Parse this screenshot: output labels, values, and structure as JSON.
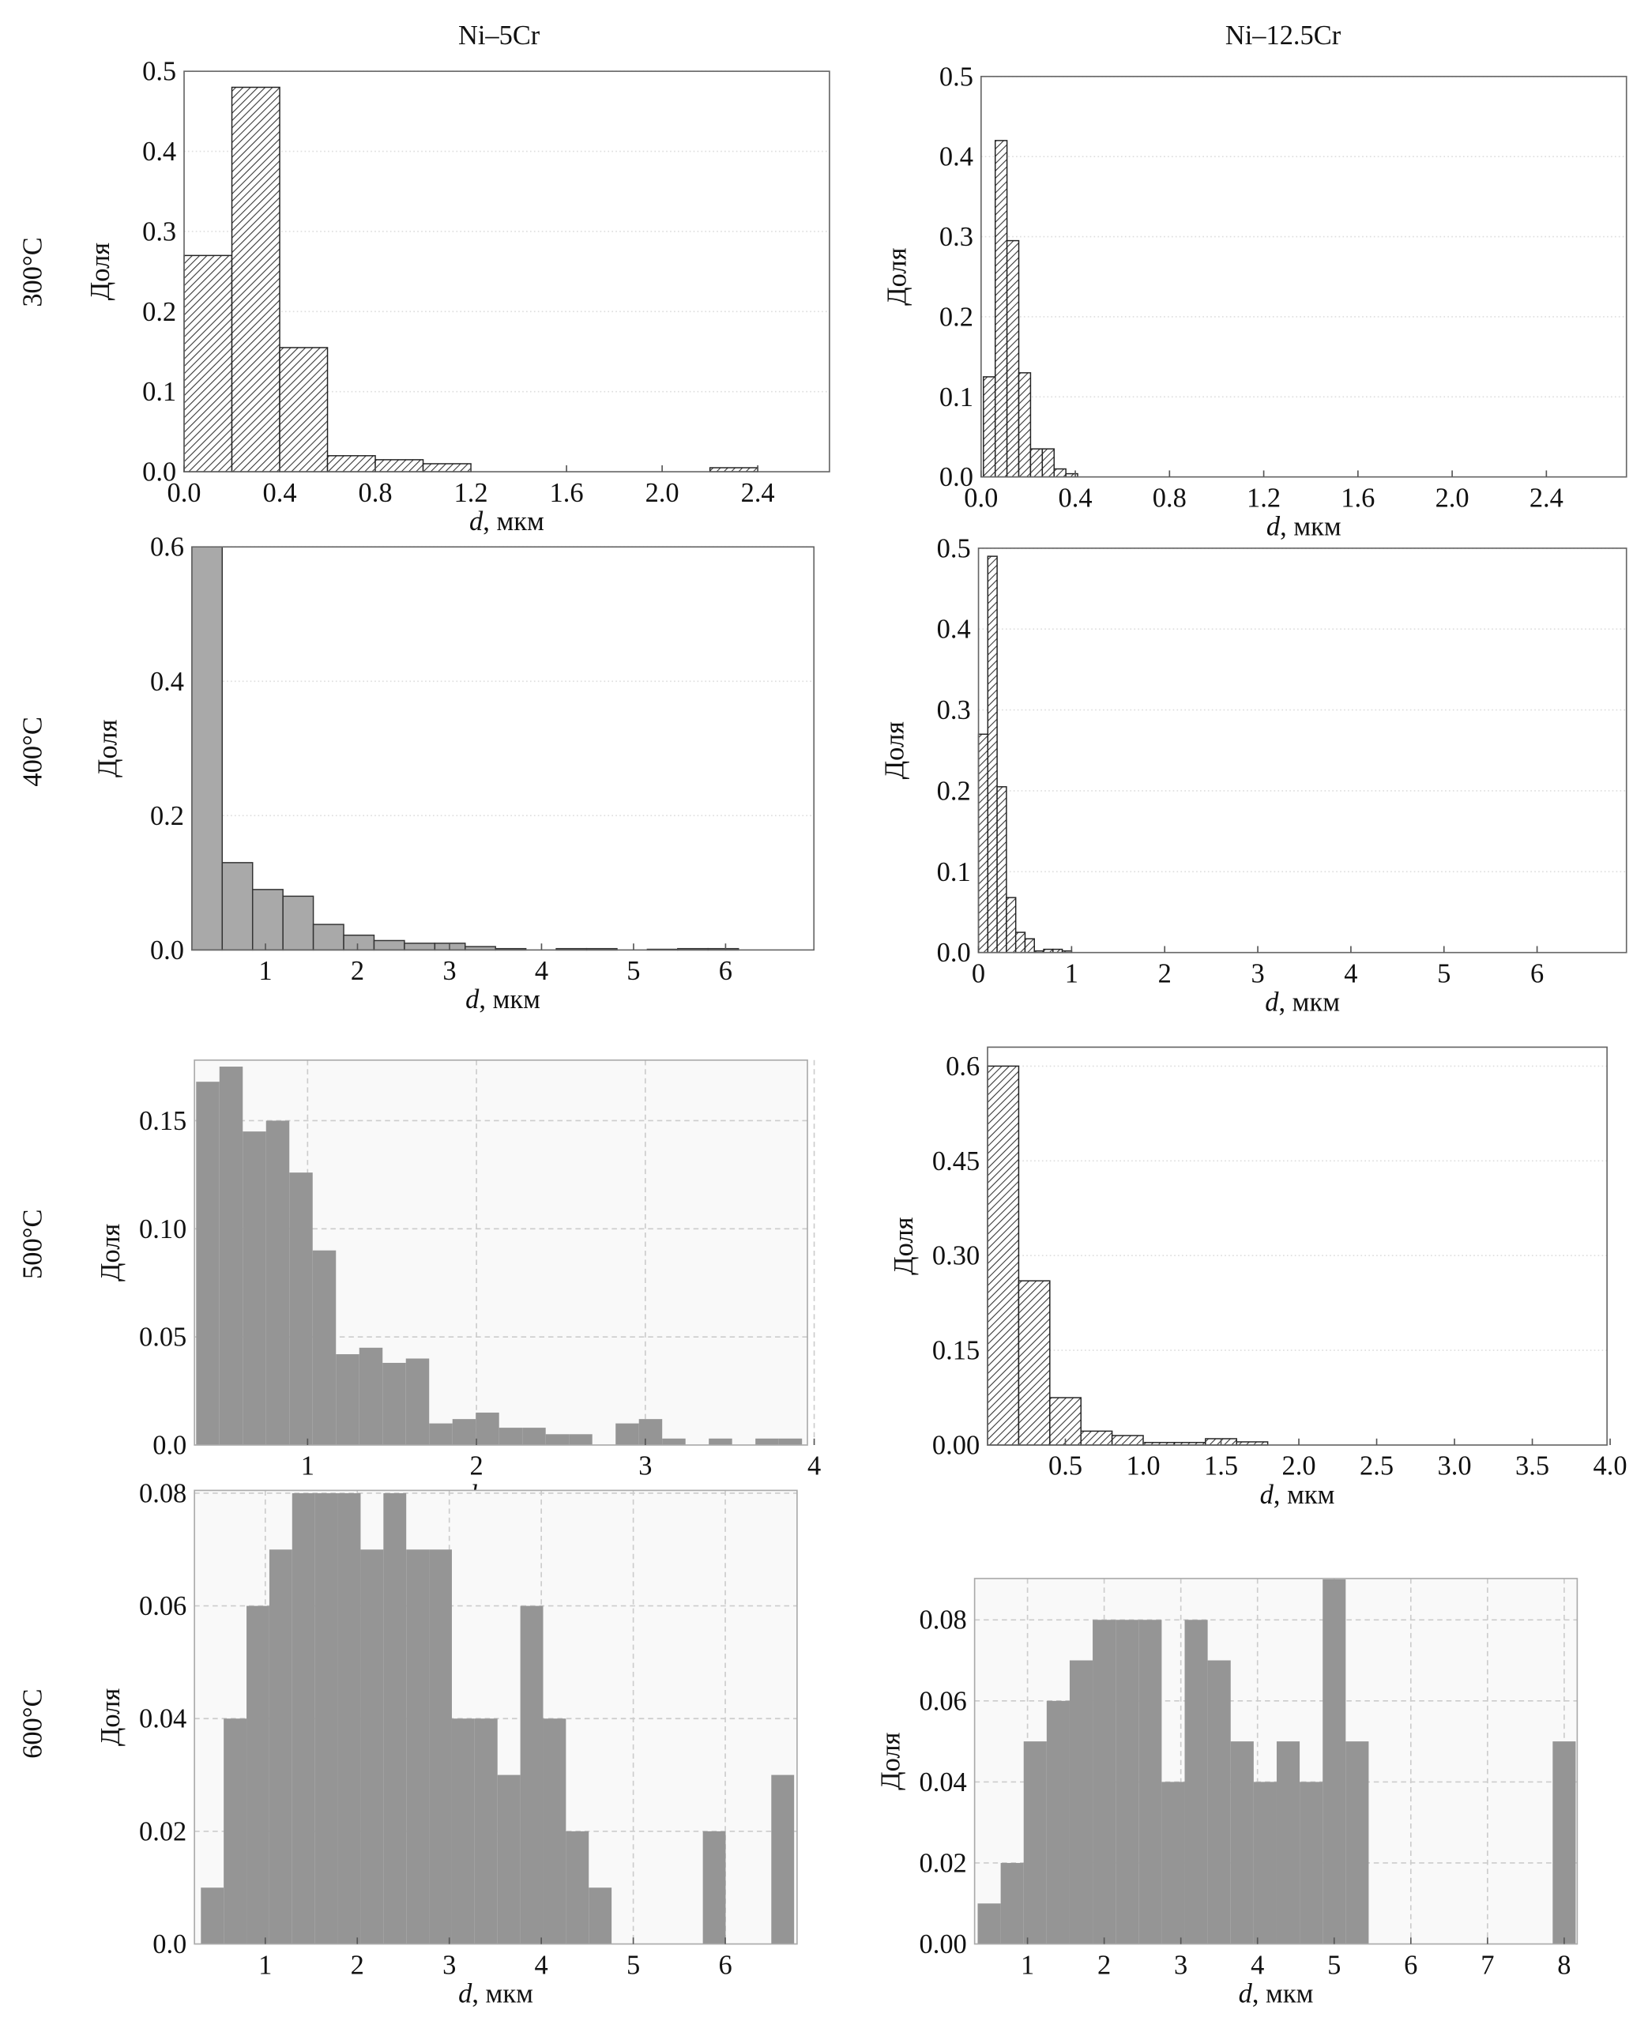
{
  "figure": {
    "columns": [
      "Ni–5Cr",
      "Ni–12.5Cr"
    ],
    "rows": [
      "300°C",
      "400°C",
      "500°C",
      "600°C"
    ]
  },
  "colors": {
    "gray_outline_fill": "#a9a9a9",
    "gray_fill": "#959595",
    "grid_bg": "#f9f9f9",
    "hatch": "#333333"
  },
  "chart_data": [
    {
      "type": "bar",
      "panel": "Ni–5Cr 300°C",
      "style": "hatched",
      "ylabel": "Доля",
      "xlabel_var": "d",
      "xlabel_unit": ", мкм",
      "bin_start": 0.0,
      "bin_width": 0.2,
      "values": [
        0.27,
        0.48,
        0.155,
        0.02,
        0.015,
        0.01,
        0,
        0,
        0,
        0,
        0,
        0.005
      ],
      "xlim": [
        0,
        2.7
      ],
      "ylim": [
        0,
        0.5
      ],
      "yticks": [
        [
          0,
          "0.0"
        ],
        [
          0.1,
          "0.1"
        ],
        [
          0.2,
          "0.2"
        ],
        [
          0.3,
          "0.3"
        ],
        [
          0.4,
          "0.4"
        ],
        [
          0.5,
          "0.5"
        ]
      ],
      "xticks": [
        [
          0,
          "0.0"
        ],
        [
          0.4,
          "0.4"
        ],
        [
          0.8,
          "0.8"
        ],
        [
          1.2,
          "1.2"
        ],
        [
          1.6,
          "1.6"
        ],
        [
          2.0,
          "2.0"
        ],
        [
          2.4,
          "2.4"
        ]
      ]
    },
    {
      "type": "bar",
      "panel": "Ni–12.5Cr 300°C",
      "style": "hatched",
      "ylabel": "Доля",
      "xlabel_var": "d",
      "xlabel_unit": ", мкм",
      "bin_start": 0.01,
      "bin_width": 0.05,
      "values": [
        0.125,
        0.42,
        0.295,
        0.13,
        0.035,
        0.035,
        0.01,
        0.004
      ],
      "xlim": [
        0,
        2.74
      ],
      "ylim": [
        0,
        0.5
      ],
      "yticks": [
        [
          0,
          "0.0"
        ],
        [
          0.1,
          "0.1"
        ],
        [
          0.2,
          "0.2"
        ],
        [
          0.3,
          "0.3"
        ],
        [
          0.4,
          "0.4"
        ],
        [
          0.5,
          "0.5"
        ]
      ],
      "xticks": [
        [
          0,
          "0.0"
        ],
        [
          0.4,
          "0.4"
        ],
        [
          0.8,
          "0.8"
        ],
        [
          1.2,
          "1.2"
        ],
        [
          1.6,
          "1.6"
        ],
        [
          2.0,
          "2.0"
        ],
        [
          2.4,
          "2.4"
        ]
      ]
    },
    {
      "type": "bar",
      "panel": "Ni–5Cr 400°C",
      "style": "gray-outline",
      "ylabel": "Доля",
      "xlabel_var": "d",
      "xlabel_unit": ", мкм",
      "bin_start": 0.2,
      "bin_width": 0.33,
      "values": [
        0.6,
        0.13,
        0.09,
        0.08,
        0.038,
        0.022,
        0.014,
        0.01,
        0.01,
        0.005,
        0.002,
        0,
        0.002,
        0.002,
        0,
        0.001,
        0.002,
        0.002
      ],
      "xlim": [
        0.2,
        6.96
      ],
      "ylim": [
        0,
        0.6
      ],
      "yticks": [
        [
          0,
          "0.0"
        ],
        [
          0.2,
          "0.2"
        ],
        [
          0.4,
          "0.4"
        ],
        [
          0.6,
          "0.6"
        ]
      ],
      "xticks": [
        [
          1,
          "1"
        ],
        [
          2,
          "2"
        ],
        [
          3,
          "3"
        ],
        [
          4,
          "4"
        ],
        [
          5,
          "5"
        ],
        [
          6,
          "6"
        ]
      ]
    },
    {
      "type": "bar",
      "panel": "Ni–12.5Cr 400°C",
      "style": "hatched",
      "ylabel": "Доля",
      "xlabel_var": "d",
      "xlabel_unit": ", мкм",
      "bin_start": 0.0,
      "bin_width": 0.1,
      "values": [
        0.27,
        0.49,
        0.205,
        0.068,
        0.025,
        0.017,
        0.002,
        0.004,
        0.004,
        0.002
      ],
      "xlim": [
        0,
        6.96
      ],
      "ylim": [
        0,
        0.5
      ],
      "yticks": [
        [
          0,
          "0.0"
        ],
        [
          0.1,
          "0.1"
        ],
        [
          0.2,
          "0.2"
        ],
        [
          0.3,
          "0.3"
        ],
        [
          0.4,
          "0.4"
        ],
        [
          0.5,
          "0.5"
        ]
      ],
      "xticks": [
        [
          0,
          "0"
        ],
        [
          1,
          "1"
        ],
        [
          2,
          "2"
        ],
        [
          3,
          "3"
        ],
        [
          4,
          "4"
        ],
        [
          5,
          "5"
        ],
        [
          6,
          "6"
        ]
      ]
    },
    {
      "type": "bar",
      "panel": "Ni–5Cr 500°C",
      "style": "gray-grid",
      "ylabel": "Доля",
      "xlabel_var": "d",
      "xlabel_unit": ", мкм",
      "bin_start": 0.34,
      "bin_width": 0.138,
      "values": [
        0.168,
        0.175,
        0.145,
        0.15,
        0.126,
        0.09,
        0.042,
        0.045,
        0.038,
        0.04,
        0.01,
        0.012,
        0.015,
        0.008,
        0.008,
        0.005,
        0.005,
        0,
        0.01,
        0.012,
        0.003,
        0,
        0.003,
        0,
        0.003,
        0.003
      ],
      "xlim": [
        0.33,
        3.96
      ],
      "ylim": [
        0,
        0.178
      ],
      "yticks": [
        [
          0,
          "0.0"
        ],
        [
          0.05,
          "0.05"
        ],
        [
          0.1,
          "0.10"
        ],
        [
          0.15,
          "0.15"
        ]
      ],
      "xticks": [
        [
          1,
          "1"
        ],
        [
          2,
          "2"
        ],
        [
          3,
          "3"
        ],
        [
          4,
          "4"
        ]
      ]
    },
    {
      "type": "bar",
      "panel": "Ni–12.5Cr 500°C",
      "style": "hatched",
      "ylabel": "Доля",
      "xlabel_var": "d",
      "xlabel_unit": ", мкм",
      "bin_start": 0.0,
      "bin_width": 0.2,
      "values": [
        0.6,
        0.26,
        0.075,
        0.022,
        0.015,
        0.004,
        0.004,
        0.01,
        0.005
      ],
      "xlim": [
        0,
        3.98
      ],
      "ylim": [
        0,
        0.63
      ],
      "yticks": [
        [
          0,
          "0.00"
        ],
        [
          0.15,
          "0.15"
        ],
        [
          0.3,
          "0.30"
        ],
        [
          0.45,
          "0.45"
        ],
        [
          0.6,
          "0.6"
        ]
      ],
      "xticks": [
        [
          0.5,
          "0.5"
        ],
        [
          1,
          "1.0"
        ],
        [
          1.5,
          "1.5"
        ],
        [
          2,
          "2.0"
        ],
        [
          2.5,
          "2.5"
        ],
        [
          3,
          "3.0"
        ],
        [
          3.5,
          "3.5"
        ],
        [
          4,
          "4.0"
        ]
      ]
    },
    {
      "type": "bar",
      "panel": "Ni–5Cr 600°C",
      "style": "gray-grid",
      "ylabel": "Доля",
      "xlabel_var": "d",
      "xlabel_unit": ", мкм",
      "bin_start": 0.3,
      "bin_width": 0.248,
      "values": [
        0.01,
        0.04,
        0.06,
        0.07,
        0.08,
        0.08,
        0.08,
        0.07,
        0.08,
        0.07,
        0.07,
        0.04,
        0.04,
        0.03,
        0.06,
        0.04,
        0.02,
        0.01,
        0,
        0,
        0,
        0,
        0.02,
        0,
        0,
        0.03
      ],
      "xlim": [
        0.23,
        6.78
      ],
      "ylim": [
        0,
        0.0805
      ],
      "yticks": [
        [
          0,
          "0.0"
        ],
        [
          0.02,
          "0.02"
        ],
        [
          0.04,
          "0.04"
        ],
        [
          0.06,
          "0.06"
        ],
        [
          0.08,
          "0.08"
        ]
      ],
      "xticks": [
        [
          1,
          "1"
        ],
        [
          2,
          "2"
        ],
        [
          3,
          "3"
        ],
        [
          4,
          "4"
        ],
        [
          5,
          "5"
        ],
        [
          6,
          "6"
        ]
      ]
    },
    {
      "type": "bar",
      "panel": "Ni–12.5Cr 600°C",
      "style": "gray-grid",
      "ylabel": "Доля",
      "xlabel_var": "d",
      "xlabel_unit": ", мкм",
      "bin_start": 0.35,
      "bin_width": 0.3,
      "values": [
        0.01,
        0.02,
        0.05,
        0.06,
        0.07,
        0.08,
        0.08,
        0.08,
        0.04,
        0.08,
        0.07,
        0.05,
        0.04,
        0.05,
        0.04,
        0.09,
        0.05,
        0,
        0,
        0,
        0,
        0,
        0,
        0,
        0,
        0.05
      ],
      "xlim": [
        0.31,
        8.17
      ],
      "ylim": [
        0,
        0.0902
      ],
      "yticks": [
        [
          0,
          "0.00"
        ],
        [
          0.02,
          "0.02"
        ],
        [
          0.04,
          "0.04"
        ],
        [
          0.06,
          "0.06"
        ],
        [
          0.08,
          "0.08"
        ]
      ],
      "xticks": [
        [
          1,
          "1"
        ],
        [
          2,
          "2"
        ],
        [
          3,
          "3"
        ],
        [
          4,
          "4"
        ],
        [
          5,
          "5"
        ],
        [
          6,
          "6"
        ],
        [
          7,
          "7"
        ],
        [
          8,
          "8"
        ]
      ]
    }
  ]
}
